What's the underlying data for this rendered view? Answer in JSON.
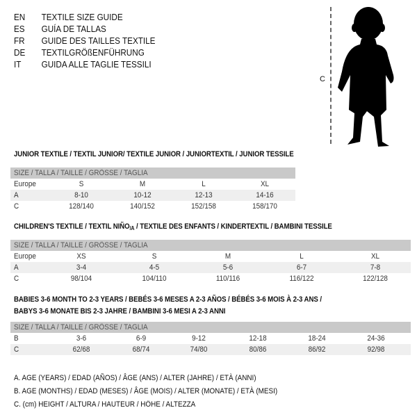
{
  "header": {
    "languages": [
      {
        "code": "EN",
        "text": "TEXTILE SIZE GUIDE"
      },
      {
        "code": "ES",
        "text": "GUÍA DE TALLAS"
      },
      {
        "code": "FR",
        "text": "GUIDE DES TAILLES TEXTILE"
      },
      {
        "code": "DE",
        "text": "TEXTILGRÖßENFÜHRUNG"
      },
      {
        "code": "IT",
        "text": "GUIDA ALLE TAGLIE TESSILI"
      }
    ],
    "measure_label": "C"
  },
  "junior": {
    "title": "JUNIOR TEXTILE / TEXTIL JUNIOR/ TEXTILE JUNIOR / JUNIORTEXTIL / JUNIOR TESSILE",
    "size_header": "SIZE / TALLA / TAILLE / GRÖSSE / TAGLIA",
    "rows": [
      {
        "label": "Europe",
        "values": [
          "S",
          "M",
          "L",
          "XL"
        ]
      },
      {
        "label": "A",
        "values": [
          "8-10",
          "10-12",
          "12-13",
          "14-16"
        ]
      },
      {
        "label": "C",
        "values": [
          "128/140",
          "140/152",
          "152/158",
          "158/170"
        ]
      }
    ]
  },
  "children": {
    "title_pre": "CHILDREN'S TEXTILE / TEXTIL NIÑO",
    "title_sub": "/A",
    "title_post": " / TEXTILE DES ENFANTS / KINDERTEXTIL / BAMBINI TESSILE",
    "size_header": "SIZE / TALLA / TAILLE / GRÖSSE / TAGLIA",
    "rows": [
      {
        "label": "Europe",
        "values": [
          "XS",
          "S",
          "M",
          "L",
          "XL"
        ]
      },
      {
        "label": "A",
        "values": [
          "3-4",
          "4-5",
          "5-6",
          "6-7",
          "7-8"
        ]
      },
      {
        "label": "C",
        "values": [
          "98/104",
          "104/110",
          "110/116",
          "116/122",
          "122/128"
        ]
      }
    ]
  },
  "babies": {
    "title_line1": "BABIES 3-6 MONTH TO 2-3 YEARS / BEBÉS 3-6 MESES A 2-3 AÑOS / BÉBÉS 3-6 MOIS À 2-3 ANS /",
    "title_line2": "BABYS 3-6 MONATE BIS 2-3 JAHRE / BAMBINI 3-6 MESI A 2-3 ANNI",
    "size_header": "SIZE / TALLA / TAILLE / GRÖSSE / TAGLIA",
    "rows": [
      {
        "label": "B",
        "values": [
          "3-6",
          "6-9",
          "9-12",
          "12-18",
          "18-24",
          "24-36"
        ]
      },
      {
        "label": "C",
        "values": [
          "62/68",
          "68/74",
          "74/80",
          "80/86",
          "86/92",
          "92/98"
        ]
      }
    ]
  },
  "legend": [
    "A. AGE (YEARS) / EDAD (AÑOS) / ÂGE (ANS) / ALTER (JAHRE) / ETÀ (ANNI)",
    "B. AGE (MONTHS) / EDAD (MESES) / ÂGE (MOIS) / ALTER (MONATE) / ETÀ (MESI)",
    "C. (cm) HEIGHT / ALTURA / HAUTEUR / HÖHE / ALTEZZA"
  ],
  "colors": {
    "header_band": "#c9c9c9",
    "shaded_row": "#efefef"
  }
}
